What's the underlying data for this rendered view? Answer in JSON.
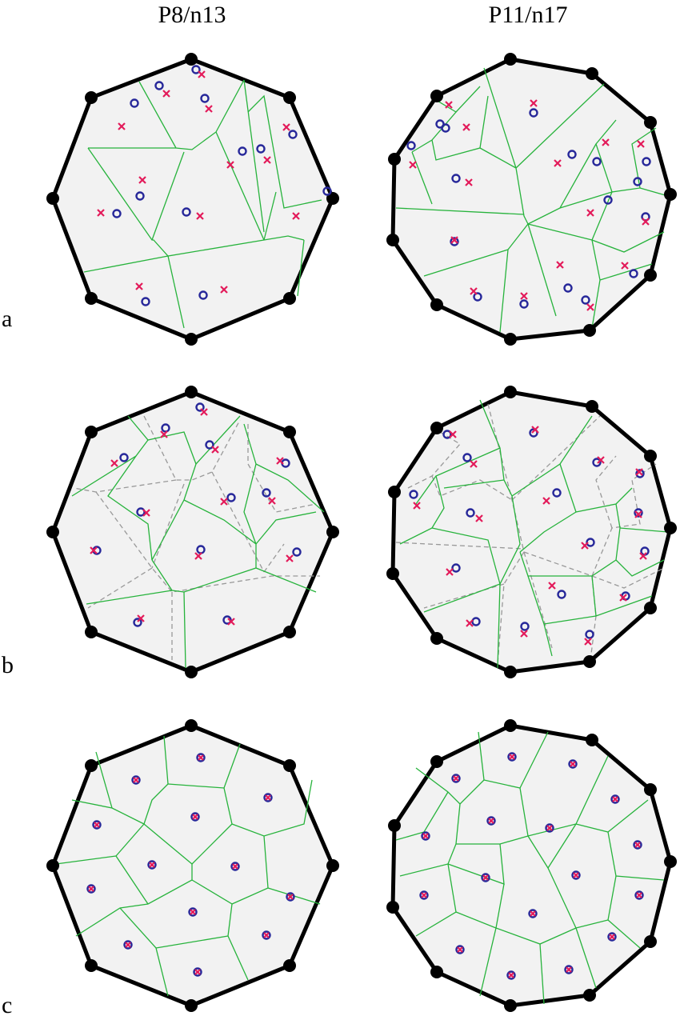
{
  "columns": [
    {
      "key": "p8",
      "title": "P8/n13"
    },
    {
      "key": "p11",
      "title": "P11/n17"
    }
  ],
  "rows": [
    {
      "key": "a",
      "label": "a",
      "description": "initial generator sites (circles) and centroids (crosses)"
    },
    {
      "key": "b",
      "label": "b",
      "description": "intermediate iteration; dashed = previous tessellation"
    },
    {
      "key": "c",
      "label": "c",
      "description": "converged centroidal Voronoi tessellation"
    }
  ],
  "legend_symbols": {
    "site": "blue circle",
    "centroid": "red cross",
    "polygon_vertex": "black dot"
  },
  "colors": {
    "boundary": "#000000",
    "cell_edge": "#27b33c",
    "previous_edge": "#999999",
    "site": "#27289a",
    "centroid": "#e31a5a",
    "cell_fill": "#f2f2f2"
  },
  "polygons": {
    "p8": {
      "vertices": 8,
      "generators": 13
    },
    "p11": {
      "vertices": 11,
      "generators": 17
    }
  }
}
